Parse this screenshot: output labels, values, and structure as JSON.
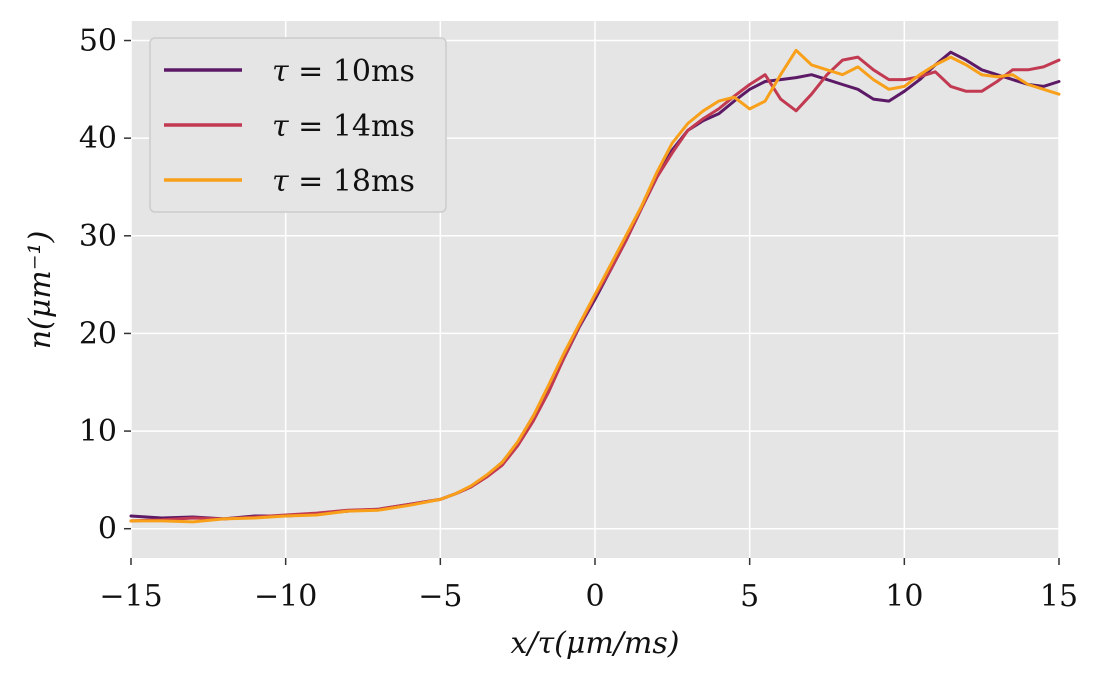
{
  "chart_data": {
    "type": "line",
    "xlabel": "x/τ(μm/ms)",
    "ylabel": "n(μm⁻¹)",
    "xlim": [
      -15,
      15
    ],
    "ylim": [
      -3,
      52
    ],
    "xticks": [
      -15,
      -10,
      -5,
      0,
      5,
      10,
      15
    ],
    "xtick_labels": [
      "−15",
      "−10",
      "−5",
      "0",
      "5",
      "10",
      "15"
    ],
    "yticks": [
      0,
      10,
      20,
      30,
      40,
      50
    ],
    "ytick_labels": [
      "0",
      "10",
      "20",
      "30",
      "40",
      "50"
    ],
    "grid": true,
    "legend_position": "upper-left",
    "colors": {
      "plot_background": "#e5e5e5",
      "grid": "#ffffff",
      "legend_background": "#e5e5e5",
      "legend_border": "#cccccc"
    },
    "x": [
      -15,
      -14,
      -13,
      -12,
      -11,
      -10,
      -9,
      -8,
      -7,
      -6,
      -5,
      -4.5,
      -4,
      -3.5,
      -3,
      -2.5,
      -2,
      -1.5,
      -1,
      -0.5,
      0,
      0.5,
      1,
      1.5,
      2,
      2.5,
      3,
      3.5,
      4,
      4.5,
      5,
      5.5,
      6,
      6.5,
      7,
      7.5,
      8,
      8.5,
      9,
      9.5,
      10,
      10.5,
      11,
      11.5,
      12,
      12.5,
      13,
      13.5,
      14,
      14.5,
      15
    ],
    "series": [
      {
        "name": "τ = 10ms",
        "label_parts": {
          "sym": "τ",
          "eq": " = ",
          "val": "10ms"
        },
        "color": "#5c1a66",
        "values": [
          1.3,
          1.1,
          1.2,
          1.0,
          1.3,
          1.3,
          1.5,
          1.8,
          2.0,
          2.5,
          3.0,
          3.6,
          4.3,
          5.4,
          6.8,
          8.8,
          11.5,
          14.3,
          17.5,
          20.7,
          23.5,
          26.5,
          29.5,
          32.8,
          36.0,
          38.8,
          40.8,
          41.8,
          42.5,
          43.8,
          45.0,
          45.8,
          46.0,
          46.2,
          46.5,
          46.0,
          45.5,
          45.0,
          44.0,
          43.8,
          44.8,
          46.0,
          47.5,
          48.8,
          48.0,
          47.0,
          46.5,
          46.0,
          45.5,
          45.3,
          45.8
        ]
      },
      {
        "name": "τ = 14ms",
        "label_parts": {
          "sym": "τ",
          "eq": " = ",
          "val": "14ms"
        },
        "color": "#c23a52",
        "values": [
          0.8,
          0.9,
          1.1,
          1.0,
          1.2,
          1.4,
          1.6,
          1.9,
          2.0,
          2.5,
          3.0,
          3.6,
          4.3,
          5.3,
          6.5,
          8.5,
          11.0,
          14.0,
          17.5,
          20.8,
          23.8,
          26.5,
          29.5,
          32.8,
          36.0,
          38.5,
          40.8,
          42.0,
          43.0,
          44.3,
          45.5,
          46.5,
          44.0,
          42.8,
          44.5,
          46.5,
          48.0,
          48.3,
          47.0,
          46.0,
          46.0,
          46.3,
          46.8,
          45.3,
          44.8,
          44.8,
          45.8,
          47.0,
          47.0,
          47.3,
          48.0
        ]
      },
      {
        "name": "τ = 18ms",
        "label_parts": {
          "sym": "τ",
          "eq": " = ",
          "val": "18ms"
        },
        "color": "#f8a01a",
        "values": [
          0.8,
          0.8,
          0.7,
          1.0,
          1.1,
          1.3,
          1.4,
          1.8,
          1.9,
          2.4,
          3.0,
          3.6,
          4.4,
          5.5,
          6.8,
          8.9,
          11.5,
          14.7,
          18.0,
          21.0,
          24.0,
          27.0,
          30.0,
          33.0,
          36.5,
          39.5,
          41.5,
          42.8,
          43.8,
          44.2,
          43.0,
          43.8,
          46.5,
          49.0,
          47.5,
          47.0,
          46.5,
          47.3,
          46.0,
          45.0,
          45.3,
          46.5,
          47.5,
          48.3,
          47.5,
          46.5,
          46.3,
          46.5,
          45.5,
          45.0,
          44.5
        ]
      }
    ]
  }
}
